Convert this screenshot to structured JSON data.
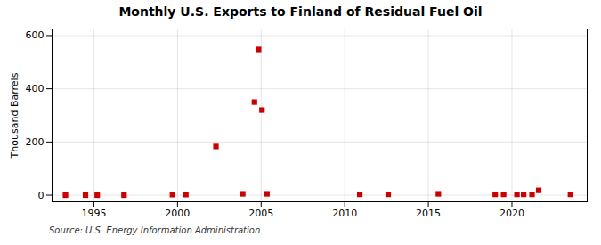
{
  "chart_data": {
    "type": "scatter",
    "title": "Monthly U.S. Exports to Finland of Residual Fuel Oil",
    "ylabel": "Thousand Barrels",
    "annotation": "Source: U.S. Energy Information Administration",
    "x": [
      1993.3,
      1994.5,
      1995.2,
      1996.8,
      1999.7,
      2000.5,
      2002.3,
      2003.9,
      2004.6,
      2004.85,
      2005.05,
      2005.35,
      2010.9,
      2012.6,
      2015.6,
      2019.0,
      2019.5,
      2020.3,
      2020.7,
      2021.2,
      2021.6,
      2023.5
    ],
    "values": [
      0,
      0,
      0,
      0,
      2,
      2,
      183,
      5,
      350,
      548,
      320,
      5,
      3,
      3,
      5,
      3,
      3,
      3,
      3,
      3,
      18,
      3
    ],
    "color": "#cc0000",
    "marker": "square",
    "xlim": [
      1992.5,
      2024.5
    ],
    "xticks": [
      1995,
      2000,
      2005,
      2010,
      2015,
      2020
    ],
    "ylim": [
      -25,
      625
    ],
    "yticks": [
      0,
      200,
      400,
      600
    ],
    "grid": true
  }
}
